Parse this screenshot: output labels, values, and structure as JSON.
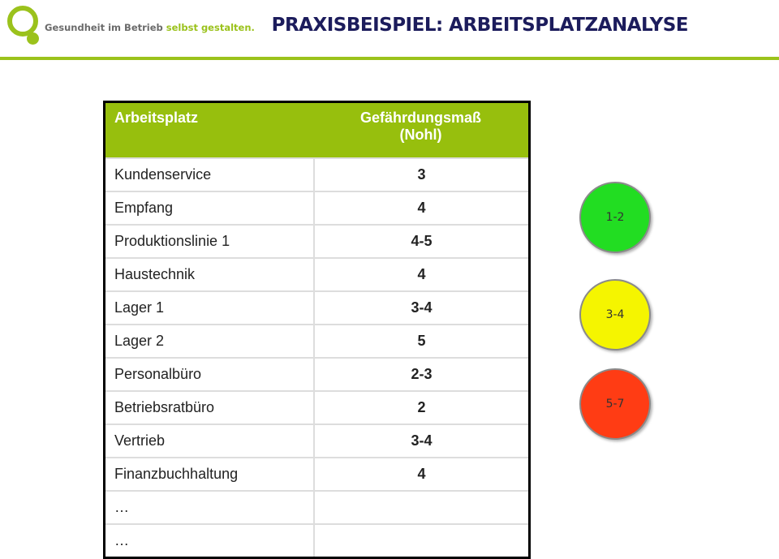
{
  "header": {
    "logo_text": [
      "Gesundheit im Betrieb",
      "selbst gestalten."
    ],
    "title": "PRAXISBEISPIEL: ARBEITSPLATZANALYSE"
  },
  "table": {
    "columns": [
      "Arbeitsplatz",
      "Gefährdungsmaß (Nohl)"
    ],
    "rows": [
      [
        "Kundenservice",
        "3"
      ],
      [
        "Empfang",
        "4"
      ],
      [
        "Produktionslinie 1",
        "4-5"
      ],
      [
        "Haustechnik",
        "4"
      ],
      [
        "Lager 1",
        "3-4"
      ],
      [
        "Lager 2",
        "5"
      ],
      [
        "Personalbüro",
        "2-3"
      ],
      [
        "Betriebsratbüro",
        "2"
      ],
      [
        "Vertrieb",
        "3-4"
      ],
      [
        "Finanzbuchhaltung",
        "4"
      ],
      [
        "…"
      ],
      [
        "…"
      ]
    ]
  },
  "legend": [
    {
      "label": "1-2",
      "color": "#22dd22"
    },
    {
      "label": "3-4",
      "color": "#f5f500"
    },
    {
      "label": "5-7",
      "color": "#ff3c14"
    }
  ]
}
